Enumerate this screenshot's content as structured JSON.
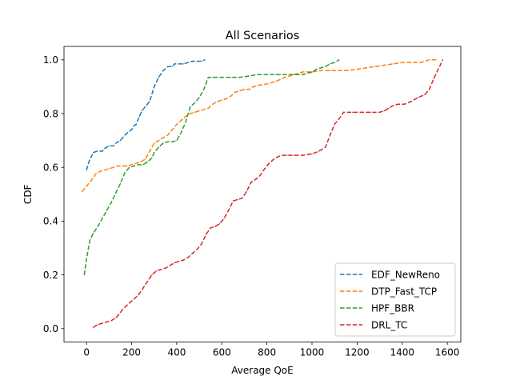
{
  "chart_data": {
    "type": "line",
    "title": "All Scenarios",
    "xlabel": "Average QoE",
    "ylabel": "CDF",
    "xlim": [
      -100,
      1660
    ],
    "ylim": [
      -0.05,
      1.05
    ],
    "xticks": [
      0,
      200,
      400,
      600,
      800,
      1000,
      1200,
      1400,
      1600
    ],
    "yticks": [
      0.0,
      0.2,
      0.4,
      0.6,
      0.8,
      1.0
    ],
    "xtick_labels": [
      "0",
      "200",
      "400",
      "600",
      "800",
      "1000",
      "1200",
      "1400",
      "1600"
    ],
    "ytick_labels": [
      "0.0",
      "0.2",
      "0.4",
      "0.6",
      "0.8",
      "1.0"
    ],
    "grid": false,
    "legend_position": "lower right",
    "series": [
      {
        "name": "EDF_NewReno",
        "color": "#1f77b4",
        "points": [
          [
            0,
            0.59
          ],
          [
            10,
            0.62
          ],
          [
            30,
            0.655
          ],
          [
            45,
            0.66
          ],
          [
            60,
            0.66
          ],
          [
            70,
            0.66
          ],
          [
            80,
            0.67
          ],
          [
            100,
            0.68
          ],
          [
            120,
            0.68
          ],
          [
            130,
            0.69
          ],
          [
            150,
            0.7
          ],
          [
            170,
            0.72
          ],
          [
            190,
            0.735
          ],
          [
            200,
            0.74
          ],
          [
            210,
            0.755
          ],
          [
            220,
            0.76
          ],
          [
            235,
            0.79
          ],
          [
            245,
            0.81
          ],
          [
            260,
            0.825
          ],
          [
            280,
            0.845
          ],
          [
            300,
            0.9
          ],
          [
            320,
            0.935
          ],
          [
            340,
            0.96
          ],
          [
            360,
            0.975
          ],
          [
            380,
            0.975
          ],
          [
            390,
            0.985
          ],
          [
            410,
            0.985
          ],
          [
            430,
            0.985
          ],
          [
            450,
            0.99
          ],
          [
            470,
            0.995
          ],
          [
            490,
            0.995
          ],
          [
            510,
            0.995
          ],
          [
            525,
            1.0
          ]
        ]
      },
      {
        "name": "DTP_Fast_TCP",
        "color": "#ff7f0e",
        "points": [
          [
            -20,
            0.51
          ],
          [
            0,
            0.53
          ],
          [
            20,
            0.55
          ],
          [
            40,
            0.575
          ],
          [
            60,
            0.585
          ],
          [
            80,
            0.59
          ],
          [
            100,
            0.595
          ],
          [
            120,
            0.6
          ],
          [
            140,
            0.605
          ],
          [
            160,
            0.605
          ],
          [
            180,
            0.605
          ],
          [
            200,
            0.61
          ],
          [
            220,
            0.615
          ],
          [
            240,
            0.62
          ],
          [
            260,
            0.63
          ],
          [
            280,
            0.66
          ],
          [
            300,
            0.69
          ],
          [
            320,
            0.7
          ],
          [
            340,
            0.71
          ],
          [
            360,
            0.72
          ],
          [
            380,
            0.74
          ],
          [
            400,
            0.76
          ],
          [
            420,
            0.775
          ],
          [
            440,
            0.79
          ],
          [
            460,
            0.8
          ],
          [
            480,
            0.805
          ],
          [
            500,
            0.81
          ],
          [
            520,
            0.815
          ],
          [
            540,
            0.82
          ],
          [
            560,
            0.835
          ],
          [
            580,
            0.845
          ],
          [
            600,
            0.85
          ],
          [
            620,
            0.855
          ],
          [
            640,
            0.865
          ],
          [
            660,
            0.88
          ],
          [
            680,
            0.885
          ],
          [
            700,
            0.89
          ],
          [
            720,
            0.89
          ],
          [
            740,
            0.9
          ],
          [
            760,
            0.905
          ],
          [
            800,
            0.91
          ],
          [
            840,
            0.92
          ],
          [
            880,
            0.935
          ],
          [
            920,
            0.945
          ],
          [
            960,
            0.955
          ],
          [
            1000,
            0.955
          ],
          [
            1040,
            0.96
          ],
          [
            1080,
            0.96
          ],
          [
            1120,
            0.96
          ],
          [
            1160,
            0.96
          ],
          [
            1200,
            0.965
          ],
          [
            1240,
            0.97
          ],
          [
            1280,
            0.975
          ],
          [
            1320,
            0.98
          ],
          [
            1360,
            0.985
          ],
          [
            1400,
            0.99
          ],
          [
            1440,
            0.99
          ],
          [
            1480,
            0.99
          ],
          [
            1520,
            1.0
          ],
          [
            1550,
            1.0
          ]
        ]
      },
      {
        "name": "HPF_BBR",
        "color": "#2ca02c",
        "points": [
          [
            -10,
            0.2
          ],
          [
            0,
            0.26
          ],
          [
            15,
            0.33
          ],
          [
            30,
            0.355
          ],
          [
            50,
            0.38
          ],
          [
            70,
            0.41
          ],
          [
            90,
            0.44
          ],
          [
            110,
            0.47
          ],
          [
            130,
            0.505
          ],
          [
            150,
            0.54
          ],
          [
            170,
            0.58
          ],
          [
            190,
            0.6
          ],
          [
            210,
            0.605
          ],
          [
            230,
            0.61
          ],
          [
            250,
            0.61
          ],
          [
            270,
            0.62
          ],
          [
            290,
            0.635
          ],
          [
            300,
            0.655
          ],
          [
            320,
            0.675
          ],
          [
            340,
            0.69
          ],
          [
            360,
            0.695
          ],
          [
            380,
            0.695
          ],
          [
            400,
            0.7
          ],
          [
            420,
            0.73
          ],
          [
            440,
            0.77
          ],
          [
            460,
            0.825
          ],
          [
            480,
            0.84
          ],
          [
            500,
            0.86
          ],
          [
            520,
            0.89
          ],
          [
            540,
            0.935
          ],
          [
            560,
            0.935
          ],
          [
            600,
            0.935
          ],
          [
            640,
            0.935
          ],
          [
            680,
            0.935
          ],
          [
            720,
            0.94
          ],
          [
            760,
            0.945
          ],
          [
            800,
            0.945
          ],
          [
            840,
            0.945
          ],
          [
            880,
            0.945
          ],
          [
            920,
            0.945
          ],
          [
            960,
            0.945
          ],
          [
            1000,
            0.955
          ],
          [
            1020,
            0.965
          ],
          [
            1040,
            0.97
          ],
          [
            1060,
            0.975
          ],
          [
            1080,
            0.985
          ],
          [
            1100,
            0.99
          ],
          [
            1120,
            1.0
          ]
        ]
      },
      {
        "name": "DRL_TC",
        "color": "#d62728",
        "points": [
          [
            30,
            0.005
          ],
          [
            50,
            0.015
          ],
          [
            70,
            0.02
          ],
          [
            90,
            0.025
          ],
          [
            110,
            0.03
          ],
          [
            130,
            0.04
          ],
          [
            150,
            0.06
          ],
          [
            170,
            0.08
          ],
          [
            190,
            0.095
          ],
          [
            210,
            0.11
          ],
          [
            230,
            0.125
          ],
          [
            250,
            0.15
          ],
          [
            270,
            0.175
          ],
          [
            290,
            0.2
          ],
          [
            310,
            0.215
          ],
          [
            330,
            0.22
          ],
          [
            350,
            0.225
          ],
          [
            370,
            0.235
          ],
          [
            390,
            0.245
          ],
          [
            410,
            0.25
          ],
          [
            430,
            0.255
          ],
          [
            450,
            0.265
          ],
          [
            470,
            0.28
          ],
          [
            490,
            0.295
          ],
          [
            510,
            0.315
          ],
          [
            530,
            0.35
          ],
          [
            550,
            0.375
          ],
          [
            570,
            0.38
          ],
          [
            590,
            0.39
          ],
          [
            610,
            0.41
          ],
          [
            630,
            0.44
          ],
          [
            650,
            0.475
          ],
          [
            670,
            0.48
          ],
          [
            690,
            0.485
          ],
          [
            710,
            0.51
          ],
          [
            730,
            0.545
          ],
          [
            750,
            0.555
          ],
          [
            770,
            0.57
          ],
          [
            790,
            0.595
          ],
          [
            810,
            0.615
          ],
          [
            830,
            0.63
          ],
          [
            850,
            0.64
          ],
          [
            870,
            0.645
          ],
          [
            890,
            0.645
          ],
          [
            920,
            0.645
          ],
          [
            960,
            0.645
          ],
          [
            1000,
            0.65
          ],
          [
            1030,
            0.66
          ],
          [
            1060,
            0.675
          ],
          [
            1080,
            0.72
          ],
          [
            1100,
            0.76
          ],
          [
            1120,
            0.78
          ],
          [
            1140,
            0.805
          ],
          [
            1180,
            0.805
          ],
          [
            1220,
            0.805
          ],
          [
            1260,
            0.805
          ],
          [
            1300,
            0.805
          ],
          [
            1320,
            0.81
          ],
          [
            1340,
            0.82
          ],
          [
            1360,
            0.83
          ],
          [
            1380,
            0.835
          ],
          [
            1410,
            0.835
          ],
          [
            1440,
            0.845
          ],
          [
            1470,
            0.86
          ],
          [
            1500,
            0.87
          ],
          [
            1520,
            0.89
          ],
          [
            1540,
            0.93
          ],
          [
            1560,
            0.965
          ],
          [
            1580,
            1.0
          ]
        ]
      }
    ]
  }
}
